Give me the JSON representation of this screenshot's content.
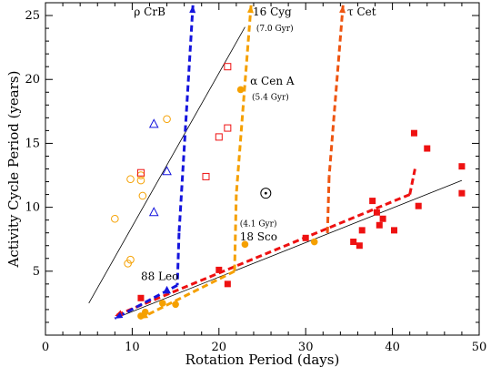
{
  "chart_data": {
    "type": "scatter",
    "title": "",
    "xlabel": "Rotation Period (days)",
    "ylabel": "Activity Cycle Period (years)",
    "xlim": [
      0,
      50
    ],
    "ylim": [
      0,
      26
    ],
    "xticks": [
      0,
      10,
      20,
      30,
      40,
      50
    ],
    "yticks": [
      5,
      10,
      15,
      20,
      25
    ],
    "grid": false,
    "colors": {
      "red": "#ee1111",
      "orange": "#f5a000",
      "blue": "#1515dd",
      "darkorange": "#ee5511",
      "black": "#000000"
    },
    "series": [
      {
        "marker": "square-filled",
        "color": "#ee1111",
        "points": [
          [
            11,
            2.9
          ],
          [
            21,
            4.0
          ],
          [
            20,
            5.1
          ],
          [
            30,
            7.6
          ],
          [
            35.5,
            7.3
          ],
          [
            36.2,
            7.0
          ],
          [
            36.5,
            8.2
          ],
          [
            37.7,
            10.5
          ],
          [
            38.2,
            9.6
          ],
          [
            38.5,
            8.6
          ],
          [
            38.9,
            9.1
          ],
          [
            40.2,
            8.2
          ],
          [
            42.5,
            15.8
          ],
          [
            43,
            10.1
          ],
          [
            44,
            14.6
          ],
          [
            48,
            13.2
          ],
          [
            48,
            11.1
          ]
        ]
      },
      {
        "marker": "circle-filled",
        "color": "#f5a000",
        "points": [
          [
            11,
            1.5
          ],
          [
            11.5,
            1.8
          ],
          [
            13.5,
            2.5
          ],
          [
            15,
            2.4
          ],
          [
            22.5,
            19.2
          ],
          [
            23,
            7.1
          ],
          [
            31,
            7.3
          ]
        ]
      },
      {
        "marker": "triangle-filled",
        "color": "#1515dd",
        "points": [
          [
            14,
            3.5
          ]
        ]
      },
      {
        "marker": "circle-open",
        "color": "#f5a000",
        "points": [
          [
            8,
            9.1
          ],
          [
            9.5,
            5.6
          ],
          [
            9.8,
            5.9
          ],
          [
            9.8,
            12.2
          ],
          [
            11,
            12.5
          ],
          [
            11,
            12.1
          ],
          [
            11.2,
            10.9
          ],
          [
            14,
            16.9
          ]
        ]
      },
      {
        "marker": "square-open",
        "color": "#ee1111",
        "points": [
          [
            11,
            12.7
          ],
          [
            18.5,
            12.4
          ],
          [
            20,
            15.5
          ],
          [
            21,
            16.2
          ],
          [
            21,
            21.0
          ]
        ]
      },
      {
        "marker": "triangle-open",
        "color": "#1515dd",
        "points": [
          [
            12.5,
            16.5
          ],
          [
            14,
            12.8
          ],
          [
            12.5,
            9.6
          ]
        ]
      },
      {
        "marker": "sun",
        "color": "#000000",
        "points": [
          [
            25.4,
            11.1
          ]
        ]
      }
    ],
    "reference_lines": [
      {
        "color": "#000000",
        "points": [
          [
            5,
            2.5
          ],
          [
            23,
            24.1
          ]
        ]
      },
      {
        "color": "#000000",
        "points": [
          [
            8,
            1.3
          ],
          [
            48,
            12.1
          ]
        ]
      }
    ],
    "arrow_paths": [
      {
        "color": "#ee1111",
        "points": [
          [
            42,
            11.0
          ],
          [
            42.6,
            13.0
          ]
        ]
      },
      {
        "color": "#ee1111",
        "points": [
          [
            42,
            11.0
          ],
          [
            8,
            1.5
          ]
        ]
      },
      {
        "color": "#f5a000",
        "points": [
          [
            23.7,
            25.8
          ],
          [
            22,
            11.0
          ]
        ]
      },
      {
        "color": "#f5a000",
        "points": [
          [
            22,
            11.0
          ],
          [
            21.8,
            5.0
          ]
        ]
      },
      {
        "color": "#f5a000",
        "points": [
          [
            21.8,
            5.0
          ],
          [
            10.9,
            1.3
          ]
        ]
      },
      {
        "color": "#1515dd",
        "points": [
          [
            17,
            25.8
          ],
          [
            15.4,
            8.0
          ]
        ]
      },
      {
        "color": "#1515dd",
        "points": [
          [
            15.4,
            8.0
          ],
          [
            15.2,
            3.9
          ]
        ]
      },
      {
        "color": "#1515dd",
        "points": [
          [
            15.2,
            3.9
          ],
          [
            8,
            1.3
          ]
        ]
      },
      {
        "color": "#ee5511",
        "points": [
          [
            34.3,
            25.8
          ],
          [
            32.7,
            12.4
          ]
        ]
      },
      {
        "color": "#ee5511",
        "points": [
          [
            32.7,
            12.4
          ],
          [
            32.5,
            7.8
          ]
        ]
      }
    ],
    "annotations": [
      {
        "text": "ρ CrB",
        "x": 10.2,
        "y": 25.0
      },
      {
        "text": "16 Cyg",
        "x": 23.9,
        "y": 25.0
      },
      {
        "text": "(7.0 Gyr)",
        "x": 24.3,
        "y": 23.8,
        "size": "small"
      },
      {
        "text": "τ Cet",
        "x": 34.8,
        "y": 25.0
      },
      {
        "text": "α Cen A",
        "x": 23.6,
        "y": 19.6
      },
      {
        "text": "(5.4 Gyr)",
        "x": 23.8,
        "y": 18.4,
        "size": "small"
      },
      {
        "text": "(4.1 Gyr)",
        "x": 22.4,
        "y": 8.5,
        "size": "small"
      },
      {
        "text": "18 Sco",
        "x": 22.4,
        "y": 7.4
      },
      {
        "text": "88 Leo",
        "x": 11.0,
        "y": 4.3
      }
    ]
  }
}
